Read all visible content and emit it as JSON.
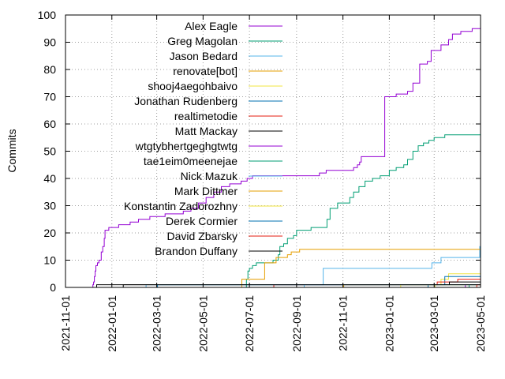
{
  "chart_data": {
    "type": "line",
    "title": "",
    "xlabel": "",
    "ylabel": "Commits",
    "ylim": [
      0,
      100
    ],
    "yticks": [
      0,
      10,
      20,
      30,
      40,
      50,
      60,
      70,
      80,
      90,
      100
    ],
    "xlim": [
      "2021-11-01",
      "2023-05-01"
    ],
    "xticks": [
      "2021-11-01",
      "2022-01-01",
      "2022-03-01",
      "2022-05-01",
      "2022-07-01",
      "2022-09-01",
      "2022-11-01",
      "2023-01-01",
      "2023-03-01",
      "2023-05-01"
    ],
    "grid": true,
    "legend_position": "top-left",
    "series": [
      {
        "name": "Alex Eagle",
        "color": "#9400d3",
        "points": [
          [
            "2021-12-07",
            0
          ],
          [
            "2021-12-07",
            1
          ],
          [
            "2021-12-08",
            2
          ],
          [
            "2021-12-09",
            4
          ],
          [
            "2021-12-10",
            6
          ],
          [
            "2021-12-11",
            8
          ],
          [
            "2021-12-13",
            9
          ],
          [
            "2021-12-15",
            10
          ],
          [
            "2021-12-18",
            13
          ],
          [
            "2021-12-20",
            15
          ],
          [
            "2021-12-22",
            18
          ],
          [
            "2021-12-23",
            21
          ],
          [
            "2021-12-28",
            22
          ],
          [
            "2022-01-10",
            23
          ],
          [
            "2022-01-25",
            24
          ],
          [
            "2022-02-05",
            25
          ],
          [
            "2022-02-20",
            26
          ],
          [
            "2022-03-12",
            27
          ],
          [
            "2022-04-05",
            28
          ],
          [
            "2022-04-15",
            29
          ],
          [
            "2022-04-25",
            31
          ],
          [
            "2022-05-05",
            33
          ],
          [
            "2022-05-15",
            35
          ],
          [
            "2022-05-25",
            37
          ],
          [
            "2022-06-05",
            38
          ],
          [
            "2022-06-20",
            39
          ],
          [
            "2022-06-28",
            40
          ],
          [
            "2022-07-05",
            41
          ],
          [
            "2022-10-01",
            42
          ],
          [
            "2022-10-10",
            43
          ],
          [
            "2022-11-15",
            44
          ],
          [
            "2022-11-20",
            45
          ],
          [
            "2022-11-23",
            46
          ],
          [
            "2022-11-25",
            48
          ],
          [
            "2022-12-25",
            48
          ],
          [
            "2022-12-26",
            70
          ],
          [
            "2023-01-10",
            71
          ],
          [
            "2023-01-25",
            72
          ],
          [
            "2023-02-01",
            75
          ],
          [
            "2023-02-10",
            82
          ],
          [
            "2023-02-20",
            83
          ],
          [
            "2023-02-25",
            87
          ],
          [
            "2023-03-10",
            89
          ],
          [
            "2023-03-20",
            91
          ],
          [
            "2023-03-25",
            93
          ],
          [
            "2023-04-05",
            94
          ],
          [
            "2023-04-20",
            95
          ],
          [
            "2023-05-01",
            95
          ]
        ]
      },
      {
        "name": "Greg Magolan",
        "color": "#009e73",
        "points": [
          [
            "2022-06-26",
            0
          ],
          [
            "2022-06-27",
            3
          ],
          [
            "2022-06-29",
            6
          ],
          [
            "2022-07-01",
            7
          ],
          [
            "2022-07-05",
            8
          ],
          [
            "2022-07-10",
            9
          ],
          [
            "2022-08-01",
            10
          ],
          [
            "2022-08-08",
            12
          ],
          [
            "2022-08-10",
            15
          ],
          [
            "2022-08-15",
            16
          ],
          [
            "2022-08-20",
            18
          ],
          [
            "2022-08-28",
            19
          ],
          [
            "2022-09-01",
            21
          ],
          [
            "2022-09-20",
            22
          ],
          [
            "2022-10-10",
            22
          ],
          [
            "2022-10-11",
            25
          ],
          [
            "2022-10-15",
            29
          ],
          [
            "2022-10-25",
            31
          ],
          [
            "2022-11-10",
            33
          ],
          [
            "2022-11-15",
            35
          ],
          [
            "2022-11-22",
            37
          ],
          [
            "2022-11-30",
            39
          ],
          [
            "2022-12-10",
            40
          ],
          [
            "2022-12-20",
            41
          ],
          [
            "2023-01-01",
            43
          ],
          [
            "2023-01-10",
            44
          ],
          [
            "2023-01-20",
            45
          ],
          [
            "2023-01-25",
            47
          ],
          [
            "2023-02-01",
            50
          ],
          [
            "2023-02-08",
            52
          ],
          [
            "2023-02-15",
            53
          ],
          [
            "2023-02-22",
            54
          ],
          [
            "2023-03-01",
            55
          ],
          [
            "2023-03-15",
            56
          ],
          [
            "2023-05-01",
            56
          ]
        ]
      },
      {
        "name": "Jason Bedard",
        "color": "#56b4e9",
        "points": [
          [
            "2021-12-15",
            0
          ],
          [
            "2022-02-15",
            1
          ],
          [
            "2022-10-05",
            1
          ],
          [
            "2022-10-06",
            7
          ],
          [
            "2023-02-25",
            7
          ],
          [
            "2023-02-26",
            9
          ],
          [
            "2023-03-10",
            11
          ],
          [
            "2023-04-29",
            11
          ],
          [
            "2023-04-30",
            15
          ],
          [
            "2023-05-01",
            15
          ]
        ]
      },
      {
        "name": "renovate[bot]",
        "color": "#e69f00",
        "points": [
          [
            "2022-06-20",
            0
          ],
          [
            "2022-06-21",
            3
          ],
          [
            "2022-07-20",
            3
          ],
          [
            "2022-07-21",
            9
          ],
          [
            "2022-08-05",
            11
          ],
          [
            "2022-08-20",
            12
          ],
          [
            "2022-08-25",
            13
          ],
          [
            "2022-09-05",
            14
          ],
          [
            "2023-05-01",
            14
          ]
        ]
      },
      {
        "name": "shooj4aegohbaivo",
        "color": "#f0e442",
        "points": [
          [
            "2023-03-01",
            0
          ],
          [
            "2023-03-02",
            1
          ],
          [
            "2023-03-10",
            3
          ],
          [
            "2023-03-20",
            5
          ],
          [
            "2023-05-01",
            5
          ]
        ]
      },
      {
        "name": "Jonathan Rudenberg",
        "color": "#0072b2",
        "points": [
          [
            "2023-02-20",
            0
          ],
          [
            "2023-02-21",
            1
          ],
          [
            "2023-03-15",
            4
          ],
          [
            "2023-05-01",
            4
          ]
        ]
      },
      {
        "name": "realtimetodie",
        "color": "#e51e10",
        "points": [
          [
            "2022-08-01",
            0
          ],
          [
            "2022-08-02",
            1
          ],
          [
            "2023-03-05",
            2
          ],
          [
            "2023-04-01",
            3
          ],
          [
            "2023-05-01",
            3
          ]
        ]
      },
      {
        "name": "Matt Mackay",
        "color": "#000000",
        "points": [
          [
            "2021-12-10",
            0
          ],
          [
            "2021-12-12",
            1
          ],
          [
            "2023-03-20",
            1
          ],
          [
            "2023-03-21",
            2
          ],
          [
            "2023-05-01",
            2
          ]
        ]
      },
      {
        "name": "wtgtybhertgeghgtwtg",
        "color": "#9400d3",
        "points": [
          [
            "2023-04-10",
            0
          ],
          [
            "2023-04-11",
            1
          ],
          [
            "2023-05-01",
            1
          ]
        ]
      },
      {
        "name": "tae1eim0meenejae",
        "color": "#009e73",
        "points": [
          [
            "2023-04-15",
            0
          ],
          [
            "2023-04-16",
            1
          ],
          [
            "2023-05-01",
            1
          ]
        ]
      },
      {
        "name": "Nick Mazuk",
        "color": "#56b4e9",
        "points": [
          [
            "2022-09-10",
            0
          ],
          [
            "2022-09-11",
            1
          ],
          [
            "2023-05-01",
            1
          ]
        ]
      },
      {
        "name": "Mark Dittmer",
        "color": "#e69f00",
        "points": [
          [
            "2022-11-01",
            0
          ],
          [
            "2022-11-02",
            1
          ],
          [
            "2023-05-01",
            1
          ]
        ]
      },
      {
        "name": "Konstantin Zadorozhny",
        "color": "#f0e442",
        "points": [
          [
            "2023-01-15",
            0
          ],
          [
            "2023-01-16",
            1
          ],
          [
            "2023-05-01",
            1
          ]
        ]
      },
      {
        "name": "Derek Cormier",
        "color": "#0072b2",
        "points": [
          [
            "2022-03-01",
            0
          ],
          [
            "2022-03-02",
            1
          ],
          [
            "2023-05-01",
            1
          ]
        ]
      },
      {
        "name": "David Zbarsky",
        "color": "#e51e10",
        "points": [
          [
            "2023-04-25",
            0
          ],
          [
            "2023-04-26",
            1
          ],
          [
            "2023-05-01",
            1
          ]
        ]
      },
      {
        "name": "Brandon Duffany",
        "color": "#000000",
        "points": [
          [
            "2022-01-15",
            0
          ],
          [
            "2022-01-16",
            1
          ],
          [
            "2023-05-01",
            1
          ]
        ]
      }
    ]
  }
}
